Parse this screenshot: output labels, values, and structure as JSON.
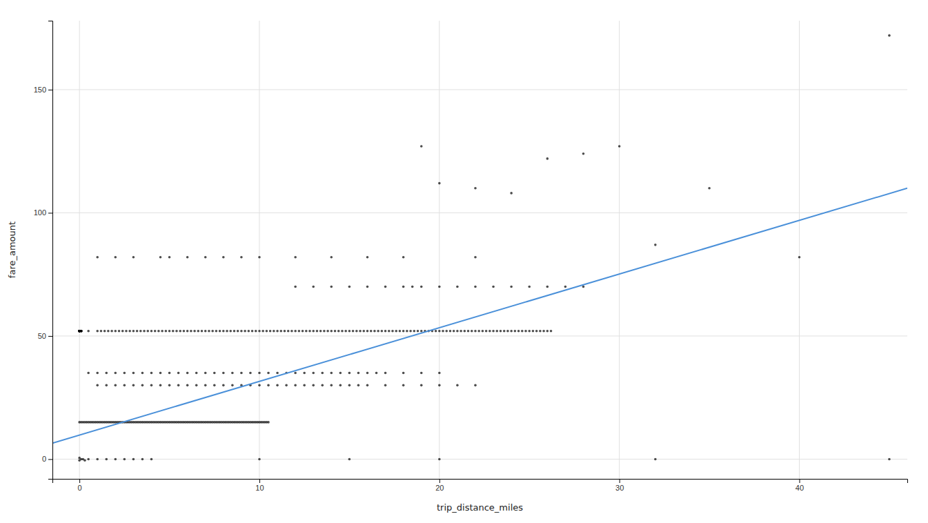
{
  "chart_data": {
    "type": "scatter",
    "xlabel": "trip_distance_miles",
    "ylabel": "fare_amount",
    "xlim": [
      -1.5,
      46
    ],
    "ylim": [
      -8,
      178
    ],
    "xticks": [
      0,
      10,
      20,
      30,
      40
    ],
    "yticks": [
      0,
      50,
      100,
      150
    ],
    "grid": true,
    "series": [
      {
        "type": "scatter",
        "color": "#000000",
        "x": [
          0,
          0,
          0,
          0,
          0,
          0,
          0,
          0,
          0,
          0,
          0,
          0,
          0,
          0,
          0,
          0.1,
          0.1,
          0.1,
          0.1,
          0.1,
          0,
          0,
          0.1,
          0.2,
          0.3,
          0,
          0.1,
          0.2,
          0.3,
          0.4,
          0.5,
          0.6,
          0.7,
          0.8,
          0.9,
          1,
          1.1,
          1.2,
          1.3,
          1.4,
          1.5,
          1.6,
          1.7,
          1.8,
          1.9,
          2,
          2.1,
          2.2,
          2.3,
          2.4,
          2.5,
          2.6,
          2.7,
          2.8,
          2.9,
          3,
          3.1,
          3.2,
          3.3,
          3.4,
          3.5,
          3.6,
          3.7,
          3.8,
          3.9,
          4,
          4.1,
          4.2,
          4.3,
          4.4,
          4.5,
          4.6,
          4.7,
          4.8,
          4.9,
          5,
          5.1,
          5.2,
          5.3,
          5.4,
          5.5,
          5.6,
          5.7,
          5.8,
          5.9,
          6,
          6.1,
          6.2,
          6.3,
          6.4,
          6.5,
          6.6,
          6.7,
          6.8,
          6.9,
          7,
          7.1,
          7.2,
          7.3,
          7.4,
          7.5,
          7.6,
          7.7,
          7.8,
          7.9,
          8,
          8.1,
          8.2,
          8.3,
          8.4,
          8.5,
          8.6,
          8.7,
          8.8,
          8.9,
          9,
          9.1,
          9.2,
          9.3,
          9.4,
          9.5,
          9.6,
          9.7,
          9.8,
          9.9,
          10,
          10.1,
          10.2,
          10.3,
          10.4,
          10.5,
          0.5,
          1,
          1.2,
          1.4,
          1.6,
          1.8,
          2,
          2.2,
          2.4,
          2.6,
          2.8,
          3,
          3.2,
          3.4,
          3.6,
          3.8,
          4,
          4.2,
          4.4,
          4.6,
          4.8,
          5,
          5.2,
          5.4,
          5.6,
          5.8,
          6,
          6.2,
          6.4,
          6.6,
          6.8,
          7,
          7.2,
          7.4,
          7.6,
          7.8,
          8,
          8.2,
          8.4,
          8.6,
          8.8,
          9,
          9.2,
          9.4,
          9.6,
          9.8,
          10,
          10.2,
          10.4,
          10.6,
          10.8,
          11,
          11.2,
          11.4,
          11.6,
          11.8,
          12,
          12.2,
          12.4,
          12.6,
          12.8,
          13,
          13.2,
          13.4,
          13.6,
          13.8,
          14,
          14.2,
          14.4,
          14.6,
          14.8,
          15,
          15.2,
          15.4,
          15.6,
          15.8,
          16,
          16.2,
          16.4,
          16.6,
          16.8,
          17,
          17.2,
          17.4,
          17.6,
          17.8,
          18,
          18.2,
          18.4,
          18.6,
          18.8,
          19,
          19.2,
          19.4,
          19.6,
          19.8,
          20,
          20.2,
          20.4,
          20.6,
          20.8,
          21,
          21.2,
          21.4,
          21.6,
          21.8,
          22,
          22.2,
          22.4,
          22.6,
          22.8,
          23,
          23.2,
          23.4,
          23.6,
          23.8,
          24,
          24.2,
          24.4,
          24.6,
          24.8,
          25,
          25.2,
          25.4,
          25.6,
          25.8,
          26,
          26.2,
          0.5,
          1,
          1.5,
          2,
          2.5,
          3,
          3.5,
          4,
          10,
          15,
          20,
          32,
          45,
          1,
          1.5,
          2,
          2.5,
          3,
          3.5,
          4,
          4.5,
          5,
          5.5,
          6,
          6.5,
          7,
          7.5,
          8,
          8.5,
          9,
          9.5,
          10,
          10.5,
          11,
          11.5,
          12,
          12.5,
          13,
          13.5,
          14,
          14.5,
          15,
          15.5,
          16,
          17,
          18,
          19,
          20,
          21,
          22,
          0.5,
          1,
          1.5,
          2,
          2.5,
          3,
          3.5,
          4,
          4.5,
          5,
          5.5,
          6,
          6.5,
          7,
          7.5,
          8,
          8.5,
          9,
          9.5,
          10,
          10.5,
          11,
          11.5,
          12,
          12.5,
          13,
          13.5,
          14,
          14.5,
          15,
          15.5,
          16,
          16.5,
          17,
          18,
          19,
          20,
          12,
          13,
          14,
          15,
          16,
          17,
          18,
          18.5,
          19,
          20,
          21,
          22,
          23,
          24,
          25,
          26,
          27,
          28,
          19,
          20,
          22,
          24,
          26,
          28,
          30,
          1,
          2,
          3,
          4.5,
          5,
          6,
          7,
          8,
          9,
          10,
          12,
          14,
          16,
          18,
          22,
          32,
          35,
          40,
          45
        ],
        "values": [
          52,
          52,
          52,
          52,
          52,
          52,
          52,
          52,
          52,
          52,
          52,
          52,
          52,
          52,
          52,
          52,
          52,
          52,
          52,
          52,
          0.5,
          -0.5,
          0,
          0,
          -0.5,
          15,
          15,
          15,
          15,
          15,
          15,
          15,
          15,
          15,
          15,
          15,
          15,
          15,
          15,
          15,
          15,
          15,
          15,
          15,
          15,
          15,
          15,
          15,
          15,
          15,
          15,
          15,
          15,
          15,
          15,
          15,
          15,
          15,
          15,
          15,
          15,
          15,
          15,
          15,
          15,
          15,
          15,
          15,
          15,
          15,
          15,
          15,
          15,
          15,
          15,
          15,
          15,
          15,
          15,
          15,
          15,
          15,
          15,
          15,
          15,
          15,
          15,
          15,
          15,
          15,
          15,
          15,
          15,
          15,
          15,
          15,
          15,
          15,
          15,
          15,
          15,
          15,
          15,
          15,
          15,
          15,
          15,
          15,
          15,
          15,
          15,
          15,
          15,
          15,
          15,
          15,
          15,
          15,
          15,
          15,
          15,
          15,
          15,
          15,
          15,
          15,
          15,
          15,
          15,
          15,
          15,
          52,
          52,
          52,
          52,
          52,
          52,
          52,
          52,
          52,
          52,
          52,
          52,
          52,
          52,
          52,
          52,
          52,
          52,
          52,
          52,
          52,
          52,
          52,
          52,
          52,
          52,
          52,
          52,
          52,
          52,
          52,
          52,
          52,
          52,
          52,
          52,
          52,
          52,
          52,
          52,
          52,
          52,
          52,
          52,
          52,
          52,
          52,
          52,
          52,
          52,
          52,
          52,
          52,
          52,
          52,
          52,
          52,
          52,
          52,
          52,
          52,
          52,
          52,
          52,
          52,
          52,
          52,
          52,
          52,
          52,
          52,
          52,
          52,
          52,
          52,
          52,
          52,
          52,
          52,
          52,
          52,
          52,
          52,
          52,
          52,
          52,
          52,
          52,
          52,
          52,
          52,
          52,
          52,
          52,
          52,
          52,
          52,
          52,
          52,
          52,
          52,
          52,
          52,
          52,
          52,
          52,
          52,
          52,
          52,
          52,
          52,
          52,
          52,
          52,
          52,
          52,
          52,
          52,
          52,
          52,
          52,
          52,
          52,
          52,
          52,
          52,
          52,
          52,
          0,
          0,
          0,
          0,
          0,
          0,
          0,
          0,
          0,
          0,
          0,
          0,
          0,
          30,
          30,
          30,
          30,
          30,
          30,
          30,
          30,
          30,
          30,
          30,
          30,
          30,
          30,
          30,
          30,
          30,
          30,
          30,
          30,
          30,
          30,
          30,
          30,
          30,
          30,
          30,
          30,
          30,
          30,
          30,
          30,
          30,
          30,
          30,
          30,
          30,
          35,
          35,
          35,
          35,
          35,
          35,
          35,
          35,
          35,
          35,
          35,
          35,
          35,
          35,
          35,
          35,
          35,
          35,
          35,
          35,
          35,
          35,
          35,
          35,
          35,
          35,
          35,
          35,
          35,
          35,
          35,
          35,
          35,
          35,
          35,
          35,
          35,
          70,
          70,
          70,
          70,
          70,
          70,
          70,
          70,
          70,
          70,
          70,
          70,
          70,
          70,
          70,
          70,
          70,
          70,
          127,
          112,
          110,
          108,
          122,
          124,
          127,
          82,
          82,
          82,
          82,
          82,
          82,
          82,
          82,
          82,
          82,
          82,
          82,
          82,
          82,
          82,
          87,
          110,
          82,
          172
        ]
      },
      {
        "type": "line",
        "color": "#4A90D9",
        "x": [
          -1.5,
          46
        ],
        "values": [
          6.5,
          110.0
        ]
      }
    ]
  }
}
